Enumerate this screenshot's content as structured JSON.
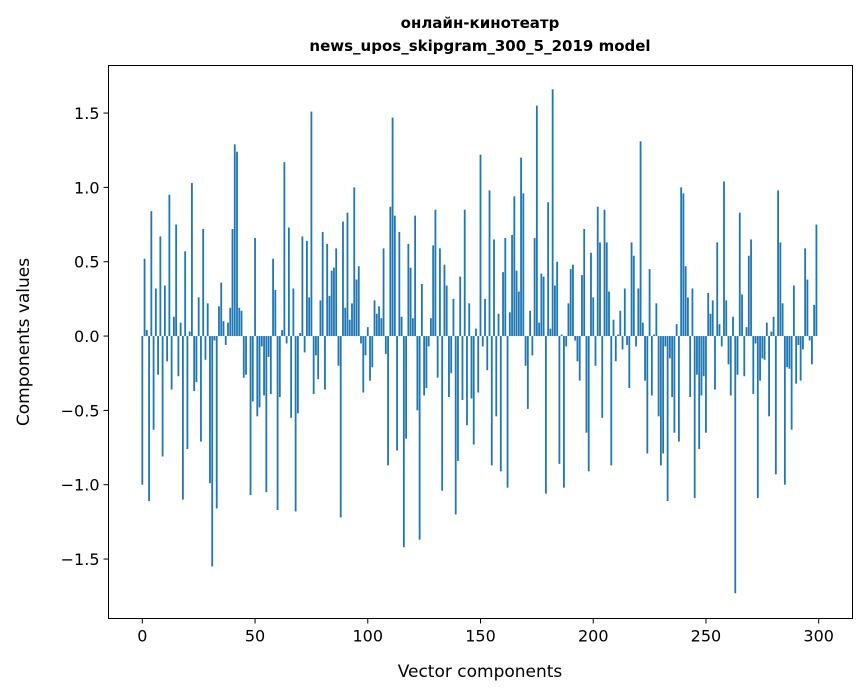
{
  "chart_data": {
    "type": "bar",
    "title_lines": [
      "онлайн-кинотеатр",
      "news_upos_skipgram_300_5_2019 model"
    ],
    "xlabel": "Vector components",
    "ylabel": "Components values",
    "xlim": [
      -15,
      315
    ],
    "ylim": [
      -1.9,
      1.82
    ],
    "xticks": [
      0,
      50,
      100,
      150,
      200,
      250,
      300
    ],
    "xtick_labels": [
      "0",
      "50",
      "100",
      "150",
      "200",
      "250",
      "300"
    ],
    "yticks": [
      -1.5,
      -1.0,
      -0.5,
      0.0,
      0.5,
      1.0,
      1.5
    ],
    "ytick_labels": [
      "−1.5",
      "−1.0",
      "−0.5",
      "0.0",
      "0.5",
      "1.0",
      "1.5"
    ],
    "grid": false,
    "bar_color": "#1f77b4",
    "values": [
      -1.0,
      0.52,
      0.04,
      -1.11,
      0.84,
      -0.63,
      0.32,
      -0.26,
      0.67,
      -0.81,
      0.34,
      -0.17,
      0.95,
      -0.36,
      0.13,
      0.75,
      -0.27,
      0.09,
      -1.1,
      0.57,
      -0.76,
      0.03,
      1.03,
      -0.37,
      -0.31,
      0.26,
      -0.71,
      0.72,
      -0.16,
      0.22,
      -0.99,
      -1.55,
      -0.03,
      -1.16,
      0.2,
      0.36,
      0.1,
      -0.06,
      0.09,
      0.19,
      0.72,
      1.29,
      1.24,
      0.19,
      0.17,
      -0.28,
      -0.26,
      0.0,
      -1.07,
      -0.44,
      0.66,
      -0.54,
      -0.48,
      -0.07,
      -0.4,
      -1.05,
      -0.14,
      -0.39,
      0.52,
      0.31,
      -1.17,
      -0.41,
      0.04,
      1.17,
      -0.05,
      0.73,
      -0.55,
      0.32,
      -1.18,
      -0.52,
      0.02,
      0.67,
      -0.11,
      0.64,
      0.26,
      1.51,
      -0.39,
      -0.13,
      -0.29,
      0.24,
      0.7,
      -0.36,
      0.62,
      0.27,
      0.44,
      0.46,
      0.59,
      -0.2,
      -1.22,
      0.77,
      0.19,
      0.83,
      0.11,
      0.22,
      1.0,
      0.38,
      0.47,
      -0.05,
      -0.38,
      -0.13,
      0.06,
      -0.3,
      -0.21,
      0.24,
      0.15,
      0.2,
      0.12,
      0.59,
      -0.12,
      -0.87,
      0.87,
      1.47,
      0.81,
      -0.77,
      0.7,
      0.13,
      -1.42,
      -0.69,
      0.62,
      0.46,
      0.12,
      0.81,
      -0.5,
      -1.37,
      0.35,
      -0.4,
      -0.35,
      -0.07,
      0.12,
      0.61,
      0.85,
      -0.28,
      0.59,
      -1.04,
      0.48,
      0.34,
      -0.41,
      -0.25,
      0.25,
      -1.2,
      -0.84,
      0.4,
      -0.43,
      0.85,
      -0.6,
      0.22,
      -0.42,
      -0.73,
      0.05,
      -0.38,
      1.22,
      -0.07,
      0.25,
      -0.23,
      0.98,
      -0.87,
      0.65,
      -0.54,
      0.15,
      -0.91,
      0.43,
      0.66,
      -1.02,
      0.16,
      0.68,
      0.94,
      0.44,
      0.3,
      1.2,
      0.96,
      -0.2,
      -0.49,
      0.17,
      -0.13,
      0.66,
      1.55,
      0.09,
      0.42,
      0.4,
      -1.06,
      0.9,
      0.05,
      1.66,
      0.34,
      0.5,
      -0.86,
      0.01,
      -1.02,
      -0.07,
      0.22,
      0.45,
      0.48,
      -0.03,
      -0.17,
      -0.3,
      0.41,
      0.72,
      -0.65,
      -0.91,
      0.56,
      0.26,
      -0.2,
      0.87,
      0.63,
      -0.55,
      0.85,
      0.63,
      0.3,
      -0.87,
      0.11,
      -0.17,
      0.01,
      0.17,
      -0.09,
      0.32,
      -0.06,
      -0.35,
      0.63,
      0.54,
      -0.07,
      0.32,
      1.31,
      0.09,
      -0.3,
      -0.79,
      0.45,
      -0.4,
      0.01,
      0.22,
      -0.54,
      -0.87,
      -0.79,
      -0.07,
      -1.11,
      -0.15,
      -0.41,
      -0.65,
      0.08,
      -0.71,
      1.0,
      0.96,
      0.47,
      0.26,
      -0.41,
      0.32,
      -1.09,
      -0.26,
      -0.76,
      -0.4,
      -0.27,
      -0.65,
      0.29,
      0.15,
      0.24,
      -0.36,
      0.63,
      0.08,
      -0.07,
      1.04,
      0.24,
      -0.19,
      -0.4,
      0.13,
      -1.73,
      -0.26,
      0.83,
      0.28,
      -0.27,
      0.06,
      0.54,
      0.65,
      -0.39,
      -0.05,
      -1.09,
      -0.3,
      -0.15,
      -0.16,
      0.09,
      -0.54,
      0.03,
      0.13,
      -0.93,
      0.98,
      0.63,
      0.22,
      -1.0,
      -0.21,
      -0.22,
      -0.63,
      0.34,
      -0.32,
      -0.06,
      -0.3,
      -0.09,
      0.59,
      0.38,
      -0.03,
      -0.19,
      0.21,
      0.75
    ]
  }
}
